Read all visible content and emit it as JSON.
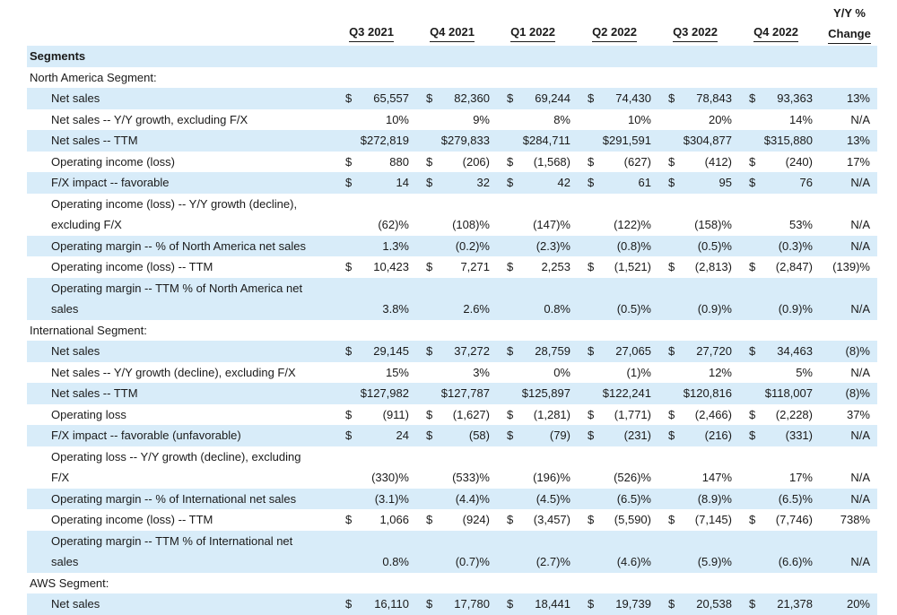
{
  "header": {
    "quarters": [
      "Q3 2021",
      "Q4 2021",
      "Q1 2022",
      "Q2 2022",
      "Q3 2022",
      "Q4 2022"
    ],
    "yy_line1": "Y/Y %",
    "yy_line2": "Change"
  },
  "rows": [
    {
      "type": "section",
      "label": "Segments",
      "shaded": true
    },
    {
      "type": "group",
      "label": "North America Segment:",
      "shaded": false
    },
    {
      "type": "item",
      "label": "Net sales",
      "shaded": true,
      "cells": [
        [
          "$",
          "65,557"
        ],
        [
          "$",
          "82,360"
        ],
        [
          "$",
          "69,244"
        ],
        [
          "$",
          "74,430"
        ],
        [
          "$",
          "78,843"
        ],
        [
          "$",
          "93,363"
        ]
      ],
      "yy": "13%"
    },
    {
      "type": "item",
      "label": "Net sales -- Y/Y growth, excluding F/X",
      "shaded": false,
      "cells": [
        [
          "",
          "10%"
        ],
        [
          "",
          "9%"
        ],
        [
          "",
          "8%"
        ],
        [
          "",
          "10%"
        ],
        [
          "",
          "20%"
        ],
        [
          "",
          "14%"
        ]
      ],
      "yy": "N/A"
    },
    {
      "type": "item",
      "label": "Net sales -- TTM",
      "shaded": true,
      "cells": [
        [
          "",
          "$272,819"
        ],
        [
          "",
          "$279,833"
        ],
        [
          "",
          "$284,711"
        ],
        [
          "",
          "$291,591"
        ],
        [
          "",
          "$304,877"
        ],
        [
          "",
          "$315,880"
        ]
      ],
      "yy": "13%"
    },
    {
      "type": "item",
      "label": "Operating income (loss)",
      "shaded": false,
      "cells": [
        [
          "$",
          "880"
        ],
        [
          "$",
          "(206)"
        ],
        [
          "$",
          "(1,568)"
        ],
        [
          "$",
          "(627)"
        ],
        [
          "$",
          "(412)"
        ],
        [
          "$",
          "(240)"
        ]
      ],
      "yy": "17%"
    },
    {
      "type": "item",
      "label": "F/X impact -- favorable",
      "shaded": true,
      "cells": [
        [
          "$",
          "14"
        ],
        [
          "$",
          "32"
        ],
        [
          "$",
          "42"
        ],
        [
          "$",
          "61"
        ],
        [
          "$",
          "95"
        ],
        [
          "$",
          "76"
        ]
      ],
      "yy": "N/A"
    },
    {
      "type": "item",
      "label": "Operating income (loss) -- Y/Y growth (decline),",
      "shaded": false,
      "cells": null,
      "yy": ""
    },
    {
      "type": "item",
      "label": "excluding F/X",
      "shaded": false,
      "cells": [
        [
          "",
          "(62)%"
        ],
        [
          "",
          "(108)%"
        ],
        [
          "",
          "(147)%"
        ],
        [
          "",
          "(122)%"
        ],
        [
          "",
          "(158)%"
        ],
        [
          "",
          "53%"
        ]
      ],
      "yy": "N/A"
    },
    {
      "type": "item",
      "label": "Operating margin -- % of North America net sales",
      "shaded": true,
      "cells": [
        [
          "",
          "1.3%"
        ],
        [
          "",
          "(0.2)%"
        ],
        [
          "",
          "(2.3)%"
        ],
        [
          "",
          "(0.8)%"
        ],
        [
          "",
          "(0.5)%"
        ],
        [
          "",
          "(0.3)%"
        ]
      ],
      "yy": "N/A"
    },
    {
      "type": "item",
      "label": "Operating income (loss) -- TTM",
      "shaded": false,
      "cells": [
        [
          "$",
          "10,423"
        ],
        [
          "$",
          "7,271"
        ],
        [
          "$",
          "2,253"
        ],
        [
          "$",
          "(1,521)"
        ],
        [
          "$",
          "(2,813)"
        ],
        [
          "$",
          "(2,847)"
        ]
      ],
      "yy": "(139)%"
    },
    {
      "type": "item",
      "label": "Operating margin -- TTM % of North America net",
      "shaded": true,
      "cells": null,
      "yy": ""
    },
    {
      "type": "item",
      "label": "sales",
      "shaded": true,
      "cells": [
        [
          "",
          "3.8%"
        ],
        [
          "",
          "2.6%"
        ],
        [
          "",
          "0.8%"
        ],
        [
          "",
          "(0.5)%"
        ],
        [
          "",
          "(0.9)%"
        ],
        [
          "",
          "(0.9)%"
        ]
      ],
      "yy": "N/A"
    },
    {
      "type": "group",
      "label": "International Segment:",
      "shaded": false
    },
    {
      "type": "item",
      "label": "Net sales",
      "shaded": true,
      "cells": [
        [
          "$",
          "29,145"
        ],
        [
          "$",
          "37,272"
        ],
        [
          "$",
          "28,759"
        ],
        [
          "$",
          "27,065"
        ],
        [
          "$",
          "27,720"
        ],
        [
          "$",
          "34,463"
        ]
      ],
      "yy": "(8)%"
    },
    {
      "type": "item",
      "label": "Net sales -- Y/Y growth (decline), excluding F/X",
      "shaded": false,
      "cells": [
        [
          "",
          "15%"
        ],
        [
          "",
          "3%"
        ],
        [
          "",
          "0%"
        ],
        [
          "",
          "(1)%"
        ],
        [
          "",
          "12%"
        ],
        [
          "",
          "5%"
        ]
      ],
      "yy": "N/A"
    },
    {
      "type": "item",
      "label": "Net sales -- TTM",
      "shaded": true,
      "cells": [
        [
          "",
          "$127,982"
        ],
        [
          "",
          "$127,787"
        ],
        [
          "",
          "$125,897"
        ],
        [
          "",
          "$122,241"
        ],
        [
          "",
          "$120,816"
        ],
        [
          "",
          "$118,007"
        ]
      ],
      "yy": "(8)%"
    },
    {
      "type": "item",
      "label": "Operating loss",
      "shaded": false,
      "cells": [
        [
          "$",
          "(911)"
        ],
        [
          "$",
          "(1,627)"
        ],
        [
          "$",
          "(1,281)"
        ],
        [
          "$",
          "(1,771)"
        ],
        [
          "$",
          "(2,466)"
        ],
        [
          "$",
          "(2,228)"
        ]
      ],
      "yy": "37%"
    },
    {
      "type": "item",
      "label": "F/X impact -- favorable (unfavorable)",
      "shaded": true,
      "cells": [
        [
          "$",
          "24"
        ],
        [
          "$",
          "(58)"
        ],
        [
          "$",
          "(79)"
        ],
        [
          "$",
          "(231)"
        ],
        [
          "$",
          "(216)"
        ],
        [
          "$",
          "(331)"
        ]
      ],
      "yy": "N/A"
    },
    {
      "type": "item",
      "label": "Operating loss -- Y/Y growth (decline), excluding",
      "shaded": false,
      "cells": null,
      "yy": ""
    },
    {
      "type": "item",
      "label": "F/X",
      "shaded": false,
      "cells": [
        [
          "",
          "(330)%"
        ],
        [
          "",
          "(533)%"
        ],
        [
          "",
          "(196)%"
        ],
        [
          "",
          "(526)%"
        ],
        [
          "",
          "147%"
        ],
        [
          "",
          "17%"
        ]
      ],
      "yy": "N/A"
    },
    {
      "type": "item",
      "label": "Operating margin -- % of International net sales",
      "shaded": true,
      "cells": [
        [
          "",
          "(3.1)%"
        ],
        [
          "",
          "(4.4)%"
        ],
        [
          "",
          "(4.5)%"
        ],
        [
          "",
          "(6.5)%"
        ],
        [
          "",
          "(8.9)%"
        ],
        [
          "",
          "(6.5)%"
        ]
      ],
      "yy": "N/A"
    },
    {
      "type": "item",
      "label": "Operating income (loss) -- TTM",
      "shaded": false,
      "cells": [
        [
          "$",
          "1,066"
        ],
        [
          "$",
          "(924)"
        ],
        [
          "$",
          "(3,457)"
        ],
        [
          "$",
          "(5,590)"
        ],
        [
          "$",
          "(7,145)"
        ],
        [
          "$",
          "(7,746)"
        ]
      ],
      "yy": "738%"
    },
    {
      "type": "item",
      "label": "Operating margin -- TTM % of International net",
      "shaded": true,
      "cells": null,
      "yy": ""
    },
    {
      "type": "item",
      "label": "sales",
      "shaded": true,
      "cells": [
        [
          "",
          "0.8%"
        ],
        [
          "",
          "(0.7)%"
        ],
        [
          "",
          "(2.7)%"
        ],
        [
          "",
          "(4.6)%"
        ],
        [
          "",
          "(5.9)%"
        ],
        [
          "",
          "(6.6)%"
        ]
      ],
      "yy": "N/A"
    },
    {
      "type": "group",
      "label": "AWS Segment:",
      "shaded": false
    },
    {
      "type": "item",
      "label": "Net sales",
      "shaded": true,
      "cells": [
        [
          "$",
          "16,110"
        ],
        [
          "$",
          "17,780"
        ],
        [
          "$",
          "18,441"
        ],
        [
          "$",
          "19,739"
        ],
        [
          "$",
          "20,538"
        ],
        [
          "$",
          "21,378"
        ]
      ],
      "yy": "20%"
    }
  ]
}
